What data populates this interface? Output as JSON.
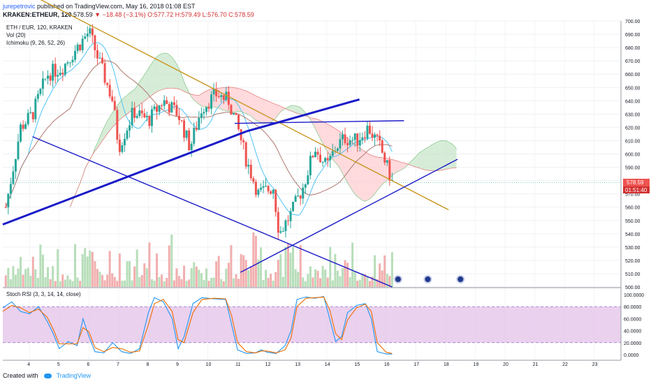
{
  "header": {
    "author": "jurepetrovic",
    "published": "published on TradingView.com, May 16, 2018 01:08 EST",
    "symbol": "KRAKEN:ETHEUR, 120",
    "last": "578.59",
    "arrow": "▼",
    "change": "−18.48 (−3.1%)",
    "ohlc": "O:577.72 H:579.49 L:576.70 C:578.59"
  },
  "legend": {
    "pair": "ETH / EUR, 120, KRAKEN",
    "vol": "Vol (20)",
    "ichimoku": "Ichimoku (9, 26, 52, 26)",
    "stoch": "Stoch RSI (3, 3, 14, 14, close)"
  },
  "price_tag": {
    "price": "578.59",
    "countdown": "01:51:40"
  },
  "footer": {
    "created": "Created with",
    "brand": "TradingView"
  },
  "colors": {
    "up": "#26a69a",
    "down": "#ef5350",
    "trendline": "#1a1ac8",
    "downtrend": "#c8961e",
    "cloud_bull": "#c8e6c9",
    "cloud_bear": "#ffcdd2",
    "stoch_k": "#2196f3",
    "stoch_d": "#ef6c00",
    "stoch_band": "#e1bee7"
  },
  "chart_data": [
    {
      "type": "candlestick",
      "title": "ETH / EUR, 120, KRAKEN",
      "y_ticks": [
        500,
        510,
        520,
        530,
        540,
        550,
        560,
        570,
        580,
        590,
        600,
        610,
        620,
        630,
        640,
        650,
        660,
        670,
        680,
        690,
        700
      ],
      "ylim": [
        500,
        700
      ],
      "x_ticks": [
        "4",
        "5",
        "6",
        "7",
        "8",
        "9",
        "10",
        "11",
        "12",
        "13",
        "14",
        "15",
        "16",
        "17",
        "18",
        "19",
        "20",
        "21",
        "22",
        "23"
      ],
      "x_tick_days": [
        4,
        5,
        6,
        7,
        8,
        9,
        10,
        11,
        12,
        13,
        14,
        15,
        16,
        17,
        18,
        19,
        20,
        21,
        22,
        23
      ],
      "xlim_days": [
        3.1,
        23.9
      ],
      "close_keypoints": [
        {
          "day": 3.2,
          "value": 560
        },
        {
          "day": 3.7,
          "value": 620
        },
        {
          "day": 4.1,
          "value": 630
        },
        {
          "day": 4.6,
          "value": 660
        },
        {
          "day": 5.1,
          "value": 665
        },
        {
          "day": 5.6,
          "value": 680
        },
        {
          "day": 6.0,
          "value": 692
        },
        {
          "day": 6.3,
          "value": 672
        },
        {
          "day": 6.8,
          "value": 640
        },
        {
          "day": 7.0,
          "value": 605
        },
        {
          "day": 7.5,
          "value": 632
        },
        {
          "day": 8.0,
          "value": 625
        },
        {
          "day": 8.5,
          "value": 640
        },
        {
          "day": 9.0,
          "value": 630
        },
        {
          "day": 9.4,
          "value": 605
        },
        {
          "day": 9.8,
          "value": 635
        },
        {
          "day": 10.3,
          "value": 645
        },
        {
          "day": 10.7,
          "value": 640
        },
        {
          "day": 11.0,
          "value": 620
        },
        {
          "day": 11.3,
          "value": 595
        },
        {
          "day": 11.7,
          "value": 570
        },
        {
          "day": 12.2,
          "value": 575
        },
        {
          "day": 12.4,
          "value": 540
        },
        {
          "day": 12.8,
          "value": 555
        },
        {
          "day": 13.2,
          "value": 575
        },
        {
          "day": 13.6,
          "value": 605
        },
        {
          "day": 14.0,
          "value": 590
        },
        {
          "day": 14.3,
          "value": 605
        },
        {
          "day": 14.6,
          "value": 612
        },
        {
          "day": 15.0,
          "value": 610
        },
        {
          "day": 15.4,
          "value": 620
        },
        {
          "day": 15.8,
          "value": 605
        },
        {
          "day": 16.0,
          "value": 592
        },
        {
          "day": 16.2,
          "value": 578.59
        }
      ],
      "annotations": [
        {
          "kind": "trendline",
          "label": "descending resistance",
          "from": {
            "day": 4.2,
            "value": 718
          },
          "to": {
            "day": 18.1,
            "value": 558
          }
        },
        {
          "kind": "trendline",
          "label": "rising support (bold)",
          "from": {
            "day": 3.1,
            "value": 547
          },
          "to": {
            "day": 11.3,
            "value": 617
          }
        },
        {
          "kind": "trendline",
          "label": "rising channel (bold)",
          "from": {
            "day": 11.3,
            "value": 617
          },
          "to": {
            "day": 15.1,
            "value": 641
          }
        },
        {
          "kind": "trendline",
          "label": "horizontal resistance",
          "from": {
            "day": 10.9,
            "value": 623
          },
          "to": {
            "day": 16.6,
            "value": 625
          }
        },
        {
          "kind": "trendline",
          "label": "descending support",
          "from": {
            "day": 4.1,
            "value": 613
          },
          "to": {
            "day": 16.2,
            "value": 500
          }
        },
        {
          "kind": "trendline",
          "label": "rising support",
          "from": {
            "day": 11.1,
            "value": 511
          },
          "to": {
            "day": 18.4,
            "value": 596
          }
        }
      ]
    },
    {
      "type": "line",
      "title": "Stoch RSI (3, 3, 14, 14, close)",
      "y_ticks": [
        0,
        20,
        40,
        60,
        80,
        100
      ],
      "y_tick_labels": [
        "0.0000",
        "20.0000",
        "40.0000",
        "60.0000",
        "80.0000",
        "100.0000"
      ],
      "ylim": [
        0,
        100
      ],
      "band": [
        20,
        80
      ],
      "series": [
        {
          "name": "K",
          "points": [
            {
              "day": 3.1,
              "value": 78
            },
            {
              "day": 3.4,
              "value": 88
            },
            {
              "day": 3.7,
              "value": 72
            },
            {
              "day": 4.0,
              "value": 68
            },
            {
              "day": 4.3,
              "value": 80
            },
            {
              "day": 4.6,
              "value": 55
            },
            {
              "day": 4.8,
              "value": 35
            },
            {
              "day": 5.0,
              "value": 10
            },
            {
              "day": 5.3,
              "value": 22
            },
            {
              "day": 5.6,
              "value": 15
            },
            {
              "day": 5.8,
              "value": 60
            },
            {
              "day": 6.0,
              "value": 30
            },
            {
              "day": 6.2,
              "value": 5
            },
            {
              "day": 6.5,
              "value": 3
            },
            {
              "day": 6.8,
              "value": 20
            },
            {
              "day": 7.1,
              "value": 5
            },
            {
              "day": 7.4,
              "value": 2
            },
            {
              "day": 7.7,
              "value": 10
            },
            {
              "day": 8.0,
              "value": 70
            },
            {
              "day": 8.2,
              "value": 95
            },
            {
              "day": 8.5,
              "value": 88
            },
            {
              "day": 8.8,
              "value": 60
            },
            {
              "day": 9.0,
              "value": 10
            },
            {
              "day": 9.2,
              "value": 30
            },
            {
              "day": 9.5,
              "value": 85
            },
            {
              "day": 9.8,
              "value": 95
            },
            {
              "day": 10.2,
              "value": 93
            },
            {
              "day": 10.6,
              "value": 92
            },
            {
              "day": 10.8,
              "value": 50
            },
            {
              "day": 11.0,
              "value": 8
            },
            {
              "day": 11.3,
              "value": 2
            },
            {
              "day": 11.6,
              "value": 3
            },
            {
              "day": 11.8,
              "value": 8
            },
            {
              "day": 12.0,
              "value": 4
            },
            {
              "day": 12.3,
              "value": 2
            },
            {
              "day": 12.6,
              "value": 15
            },
            {
              "day": 12.8,
              "value": 40
            },
            {
              "day": 13.0,
              "value": 92
            },
            {
              "day": 13.3,
              "value": 96
            },
            {
              "day": 13.6,
              "value": 94
            },
            {
              "day": 13.9,
              "value": 97
            },
            {
              "day": 14.1,
              "value": 60
            },
            {
              "day": 14.3,
              "value": 22
            },
            {
              "day": 14.5,
              "value": 30
            },
            {
              "day": 14.7,
              "value": 70
            },
            {
              "day": 15.0,
              "value": 82
            },
            {
              "day": 15.3,
              "value": 85
            },
            {
              "day": 15.5,
              "value": 60
            },
            {
              "day": 15.7,
              "value": 5
            },
            {
              "day": 16.0,
              "value": 1
            },
            {
              "day": 16.2,
              "value": 1
            }
          ]
        },
        {
          "name": "D",
          "points": [
            {
              "day": 3.1,
              "value": 72
            },
            {
              "day": 3.4,
              "value": 82
            },
            {
              "day": 3.7,
              "value": 78
            },
            {
              "day": 4.0,
              "value": 70
            },
            {
              "day": 4.3,
              "value": 76
            },
            {
              "day": 4.6,
              "value": 62
            },
            {
              "day": 4.8,
              "value": 42
            },
            {
              "day": 5.0,
              "value": 18
            },
            {
              "day": 5.3,
              "value": 18
            },
            {
              "day": 5.6,
              "value": 18
            },
            {
              "day": 5.8,
              "value": 45
            },
            {
              "day": 6.0,
              "value": 38
            },
            {
              "day": 6.2,
              "value": 12
            },
            {
              "day": 6.5,
              "value": 5
            },
            {
              "day": 6.8,
              "value": 12
            },
            {
              "day": 7.1,
              "value": 10
            },
            {
              "day": 7.4,
              "value": 4
            },
            {
              "day": 7.7,
              "value": 6
            },
            {
              "day": 8.0,
              "value": 50
            },
            {
              "day": 8.2,
              "value": 85
            },
            {
              "day": 8.5,
              "value": 92
            },
            {
              "day": 8.8,
              "value": 72
            },
            {
              "day": 9.0,
              "value": 25
            },
            {
              "day": 9.2,
              "value": 20
            },
            {
              "day": 9.5,
              "value": 70
            },
            {
              "day": 9.8,
              "value": 92
            },
            {
              "day": 10.2,
              "value": 94
            },
            {
              "day": 10.6,
              "value": 93
            },
            {
              "day": 10.8,
              "value": 65
            },
            {
              "day": 11.0,
              "value": 20
            },
            {
              "day": 11.3,
              "value": 5
            },
            {
              "day": 11.6,
              "value": 3
            },
            {
              "day": 11.8,
              "value": 6
            },
            {
              "day": 12.0,
              "value": 6
            },
            {
              "day": 12.3,
              "value": 3
            },
            {
              "day": 12.6,
              "value": 8
            },
            {
              "day": 12.8,
              "value": 28
            },
            {
              "day": 13.0,
              "value": 80
            },
            {
              "day": 13.3,
              "value": 94
            },
            {
              "day": 13.6,
              "value": 95
            },
            {
              "day": 13.9,
              "value": 96
            },
            {
              "day": 14.1,
              "value": 75
            },
            {
              "day": 14.3,
              "value": 35
            },
            {
              "day": 14.5,
              "value": 25
            },
            {
              "day": 14.7,
              "value": 58
            },
            {
              "day": 15.0,
              "value": 78
            },
            {
              "day": 15.3,
              "value": 84
            },
            {
              "day": 15.5,
              "value": 72
            },
            {
              "day": 15.7,
              "value": 20
            },
            {
              "day": 16.0,
              "value": 4
            },
            {
              "day": 16.2,
              "value": 2
            }
          ]
        }
      ]
    }
  ]
}
